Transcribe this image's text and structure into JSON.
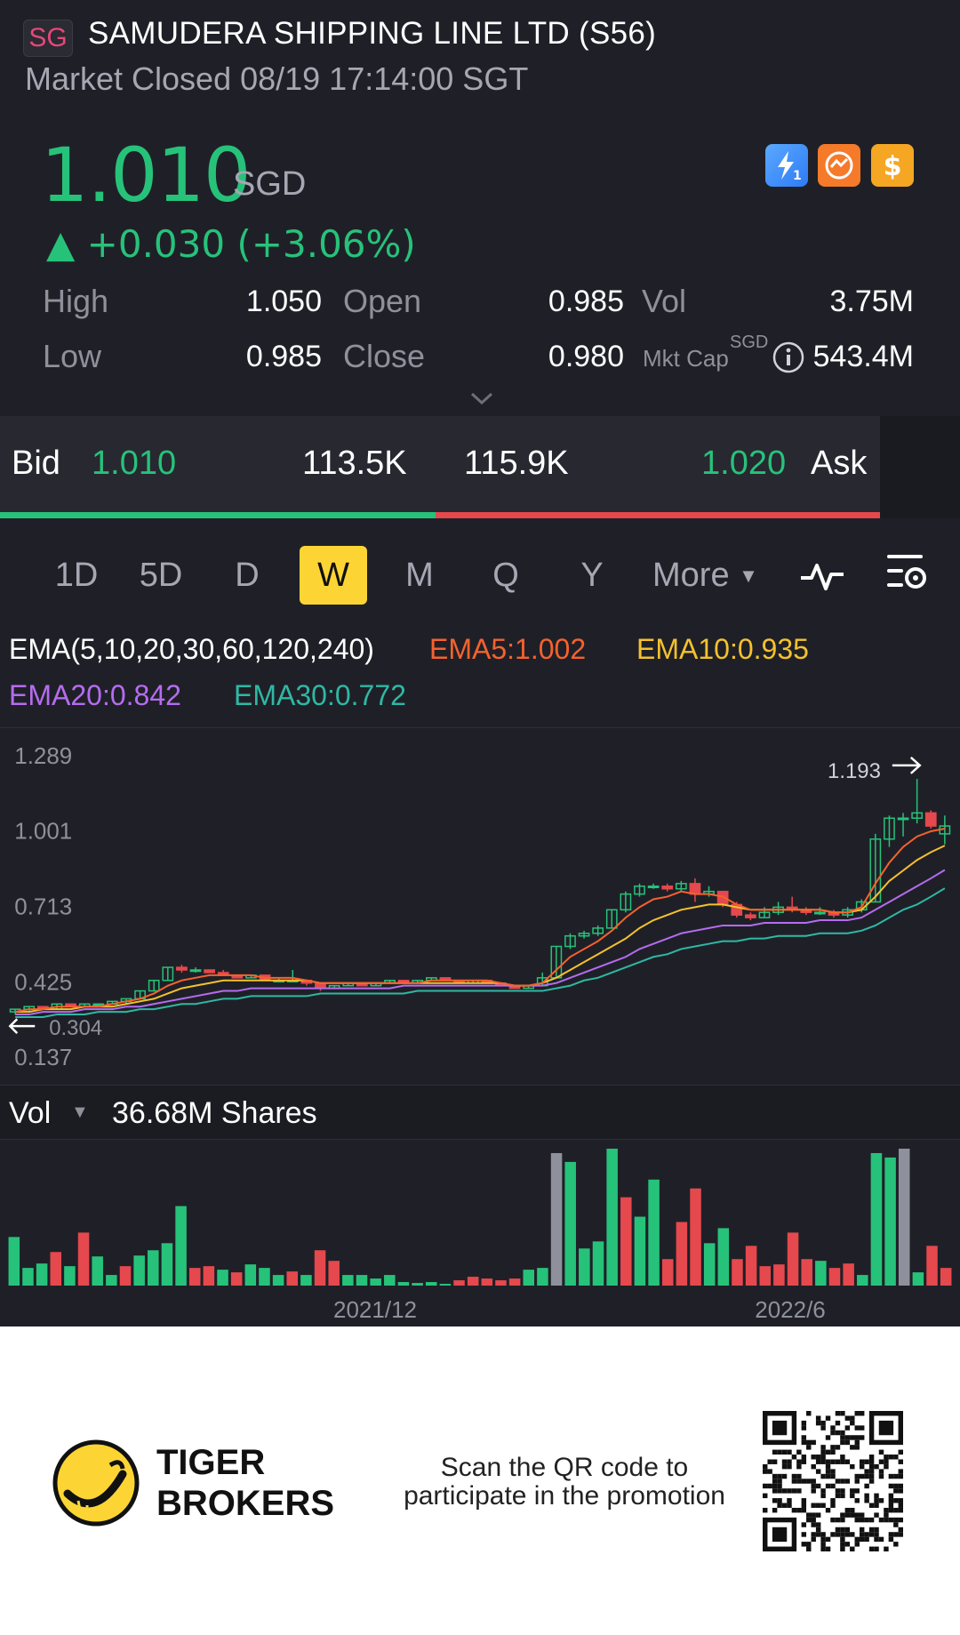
{
  "header": {
    "exchange_badge": "SG",
    "title": "SAMUDERA SHIPPING LINE LTD (S56)",
    "status": "Market Closed 08/19 17:14:00 SGT"
  },
  "quote": {
    "price": "1.010",
    "currency": "SGD",
    "change": "▲ +0.030 (+3.06%)",
    "icons": [
      "flash-1-icon",
      "orange-swap-icon",
      "dollar-icon"
    ]
  },
  "stats": {
    "high_label": "High",
    "high": "1.050",
    "low_label": "Low",
    "low": "0.985",
    "open_label": "Open",
    "open": "0.985",
    "close_label": "Close",
    "close": "0.980",
    "vol_label": "Vol",
    "vol": "3.75M",
    "mktcap_label": "Mkt Cap",
    "mktcap_unit": "SGD",
    "mktcap": "543.4M"
  },
  "bidask": {
    "bid_label": "Bid",
    "bid_price": "1.010",
    "bid_size": "113.5K",
    "ask_size": "115.9K",
    "ask_price": "1.020",
    "ask_label": "Ask",
    "bid_color": "#27c27a",
    "ask_color": "#e5484d"
  },
  "periods": {
    "items": [
      "1D",
      "5D",
      "D",
      "W",
      "M",
      "Q",
      "Y"
    ],
    "active": "W",
    "more_label": "More"
  },
  "ema": {
    "label": "EMA(5,10,20,30,60,120,240)",
    "ema5": "EMA5:1.002",
    "ema10": "EMA10:0.935",
    "ema20": "EMA20:0.842",
    "ema30": "EMA30:0.772",
    "colors": {
      "ema5": "#f5622d",
      "ema10": "#f5c12d",
      "ema20": "#b56cf0",
      "ema30": "#2fb8a5"
    }
  },
  "chart_data": {
    "type": "candlestick",
    "y_ticks": [
      "1.289",
      "1.001",
      "0.713",
      "0.425",
      "0.137"
    ],
    "ylim": [
      0.137,
      1.289
    ],
    "max_label": "1.193",
    "min_label": "0.304",
    "x_labels": [
      "2021/12",
      "2022/6"
    ],
    "candles": [
      [
        0.3,
        0.31,
        0.29,
        0.31
      ],
      [
        0.31,
        0.32,
        0.3,
        0.32
      ],
      [
        0.32,
        0.32,
        0.31,
        0.31
      ],
      [
        0.31,
        0.33,
        0.31,
        0.33
      ],
      [
        0.33,
        0.33,
        0.32,
        0.32
      ],
      [
        0.32,
        0.33,
        0.32,
        0.33
      ],
      [
        0.33,
        0.33,
        0.32,
        0.33
      ],
      [
        0.33,
        0.34,
        0.33,
        0.34
      ],
      [
        0.34,
        0.35,
        0.33,
        0.35
      ],
      [
        0.35,
        0.38,
        0.35,
        0.38
      ],
      [
        0.38,
        0.42,
        0.38,
        0.42
      ],
      [
        0.42,
        0.47,
        0.42,
        0.47
      ],
      [
        0.47,
        0.48,
        0.45,
        0.46
      ],
      [
        0.46,
        0.47,
        0.45,
        0.46
      ],
      [
        0.46,
        0.46,
        0.45,
        0.45
      ],
      [
        0.45,
        0.46,
        0.44,
        0.44
      ],
      [
        0.44,
        0.44,
        0.43,
        0.43
      ],
      [
        0.43,
        0.44,
        0.43,
        0.44
      ],
      [
        0.44,
        0.44,
        0.42,
        0.42
      ],
      [
        0.42,
        0.43,
        0.42,
        0.42
      ],
      [
        0.42,
        0.46,
        0.42,
        0.42
      ],
      [
        0.42,
        0.42,
        0.4,
        0.41
      ],
      [
        0.41,
        0.41,
        0.38,
        0.39
      ],
      [
        0.39,
        0.4,
        0.39,
        0.4
      ],
      [
        0.4,
        0.41,
        0.4,
        0.41
      ],
      [
        0.41,
        0.41,
        0.4,
        0.4
      ],
      [
        0.4,
        0.41,
        0.4,
        0.41
      ],
      [
        0.41,
        0.42,
        0.41,
        0.42
      ],
      [
        0.42,
        0.42,
        0.41,
        0.41
      ],
      [
        0.41,
        0.42,
        0.41,
        0.42
      ],
      [
        0.42,
        0.43,
        0.42,
        0.43
      ],
      [
        0.43,
        0.43,
        0.42,
        0.42
      ],
      [
        0.42,
        0.42,
        0.41,
        0.41
      ],
      [
        0.41,
        0.42,
        0.41,
        0.42
      ],
      [
        0.42,
        0.42,
        0.41,
        0.41
      ],
      [
        0.41,
        0.41,
        0.4,
        0.4
      ],
      [
        0.4,
        0.4,
        0.39,
        0.39
      ],
      [
        0.39,
        0.4,
        0.39,
        0.4
      ],
      [
        0.4,
        0.45,
        0.4,
        0.43
      ],
      [
        0.43,
        0.55,
        0.43,
        0.55
      ],
      [
        0.55,
        0.6,
        0.54,
        0.59
      ],
      [
        0.59,
        0.61,
        0.58,
        0.6
      ],
      [
        0.6,
        0.63,
        0.59,
        0.62
      ],
      [
        0.62,
        0.69,
        0.62,
        0.69
      ],
      [
        0.69,
        0.76,
        0.68,
        0.75
      ],
      [
        0.75,
        0.79,
        0.74,
        0.78
      ],
      [
        0.78,
        0.79,
        0.77,
        0.78
      ],
      [
        0.78,
        0.79,
        0.76,
        0.77
      ],
      [
        0.77,
        0.8,
        0.76,
        0.79
      ],
      [
        0.79,
        0.81,
        0.72,
        0.75
      ],
      [
        0.75,
        0.78,
        0.74,
        0.76
      ],
      [
        0.76,
        0.76,
        0.7,
        0.71
      ],
      [
        0.71,
        0.72,
        0.66,
        0.67
      ],
      [
        0.67,
        0.68,
        0.65,
        0.66
      ],
      [
        0.66,
        0.7,
        0.66,
        0.68
      ],
      [
        0.68,
        0.72,
        0.67,
        0.7
      ],
      [
        0.7,
        0.74,
        0.68,
        0.69
      ],
      [
        0.69,
        0.7,
        0.67,
        0.68
      ],
      [
        0.68,
        0.7,
        0.67,
        0.68
      ],
      [
        0.68,
        0.69,
        0.66,
        0.67
      ],
      [
        0.67,
        0.7,
        0.66,
        0.69
      ],
      [
        0.69,
        0.73,
        0.68,
        0.72
      ],
      [
        0.72,
        0.98,
        0.72,
        0.96
      ],
      [
        0.96,
        1.05,
        0.93,
        1.04
      ],
      [
        1.04,
        1.06,
        0.97,
        1.04
      ],
      [
        1.04,
        1.19,
        1.02,
        1.06
      ],
      [
        1.06,
        1.07,
        1.0,
        1.01
      ],
      [
        0.98,
        1.05,
        0.94,
        1.01
      ]
    ],
    "ema5": [
      0.3,
      0.31,
      0.31,
      0.32,
      0.32,
      0.32,
      0.32,
      0.33,
      0.34,
      0.35,
      0.37,
      0.4,
      0.42,
      0.43,
      0.44,
      0.44,
      0.44,
      0.44,
      0.43,
      0.43,
      0.43,
      0.42,
      0.41,
      0.41,
      0.41,
      0.41,
      0.41,
      0.41,
      0.41,
      0.41,
      0.42,
      0.42,
      0.42,
      0.42,
      0.42,
      0.41,
      0.4,
      0.4,
      0.41,
      0.46,
      0.51,
      0.54,
      0.57,
      0.61,
      0.66,
      0.7,
      0.73,
      0.74,
      0.76,
      0.75,
      0.75,
      0.74,
      0.71,
      0.69,
      0.69,
      0.69,
      0.69,
      0.69,
      0.69,
      0.68,
      0.68,
      0.7,
      0.79,
      0.87,
      0.93,
      0.97,
      0.99,
      1.0
    ],
    "ema10": [
      0.3,
      0.3,
      0.31,
      0.31,
      0.31,
      0.32,
      0.32,
      0.32,
      0.33,
      0.34,
      0.35,
      0.37,
      0.39,
      0.4,
      0.41,
      0.42,
      0.42,
      0.42,
      0.42,
      0.42,
      0.42,
      0.42,
      0.41,
      0.41,
      0.41,
      0.41,
      0.41,
      0.41,
      0.41,
      0.41,
      0.41,
      0.41,
      0.41,
      0.41,
      0.41,
      0.41,
      0.4,
      0.4,
      0.41,
      0.43,
      0.46,
      0.49,
      0.52,
      0.55,
      0.58,
      0.62,
      0.65,
      0.67,
      0.69,
      0.7,
      0.71,
      0.71,
      0.7,
      0.69,
      0.69,
      0.69,
      0.69,
      0.69,
      0.69,
      0.68,
      0.68,
      0.69,
      0.74,
      0.8,
      0.84,
      0.88,
      0.91,
      0.935
    ],
    "ema20": [
      0.29,
      0.29,
      0.3,
      0.3,
      0.3,
      0.31,
      0.31,
      0.31,
      0.32,
      0.32,
      0.33,
      0.34,
      0.35,
      0.36,
      0.37,
      0.38,
      0.38,
      0.39,
      0.39,
      0.39,
      0.39,
      0.39,
      0.39,
      0.39,
      0.39,
      0.39,
      0.39,
      0.39,
      0.4,
      0.4,
      0.4,
      0.4,
      0.4,
      0.4,
      0.4,
      0.4,
      0.4,
      0.4,
      0.4,
      0.41,
      0.43,
      0.45,
      0.47,
      0.49,
      0.51,
      0.54,
      0.56,
      0.58,
      0.6,
      0.61,
      0.62,
      0.63,
      0.63,
      0.63,
      0.64,
      0.64,
      0.64,
      0.64,
      0.65,
      0.65,
      0.65,
      0.66,
      0.69,
      0.72,
      0.75,
      0.78,
      0.81,
      0.842
    ],
    "ema30": [
      0.28,
      0.28,
      0.28,
      0.29,
      0.29,
      0.29,
      0.3,
      0.3,
      0.3,
      0.31,
      0.31,
      0.32,
      0.33,
      0.33,
      0.34,
      0.35,
      0.35,
      0.36,
      0.36,
      0.36,
      0.36,
      0.36,
      0.37,
      0.37,
      0.37,
      0.37,
      0.37,
      0.37,
      0.37,
      0.38,
      0.38,
      0.38,
      0.38,
      0.38,
      0.38,
      0.38,
      0.38,
      0.38,
      0.38,
      0.39,
      0.4,
      0.42,
      0.43,
      0.45,
      0.47,
      0.49,
      0.51,
      0.52,
      0.54,
      0.55,
      0.56,
      0.57,
      0.57,
      0.58,
      0.58,
      0.59,
      0.59,
      0.59,
      0.6,
      0.6,
      0.6,
      0.61,
      0.63,
      0.66,
      0.69,
      0.71,
      0.74,
      0.772
    ],
    "volumes": [
      55,
      20,
      25,
      38,
      22,
      60,
      33,
      12,
      22,
      34,
      40,
      48,
      90,
      20,
      22,
      18,
      15,
      24,
      20,
      12,
      16,
      12,
      40,
      28,
      12,
      12,
      8,
      12,
      4,
      3,
      4,
      2,
      6,
      10,
      8,
      6,
      8,
      18,
      20,
      150,
      140,
      42,
      50,
      155,
      100,
      78,
      120,
      30,
      72,
      110,
      48,
      65,
      30,
      45,
      22,
      24,
      60,
      30,
      28,
      20,
      25,
      12,
      150,
      145,
      155,
      15,
      45,
      20
    ],
    "volume_colors": [
      "g",
      "g",
      "g",
      "r",
      "g",
      "r",
      "g",
      "g",
      "r",
      "g",
      "g",
      "g",
      "g",
      "r",
      "r",
      "g",
      "r",
      "g",
      "g",
      "g",
      "r",
      "g",
      "r",
      "r",
      "g",
      "g",
      "g",
      "g",
      "g",
      "g",
      "g",
      "g",
      "r",
      "r",
      "r",
      "r",
      "r",
      "g",
      "g",
      "gray",
      "g",
      "g",
      "g",
      "g",
      "r",
      "g",
      "g",
      "r",
      "r",
      "r",
      "g",
      "g",
      "r",
      "r",
      "r",
      "r",
      "r",
      "r",
      "g",
      "r",
      "r",
      "g",
      "g",
      "g",
      "gray",
      "g",
      "r",
      "r"
    ]
  },
  "volume": {
    "label": "Vol",
    "value": "36.68M Shares"
  },
  "footer": {
    "brand_line1": "TIGER",
    "brand_line2": "BROKERS",
    "promo_line1": "Scan the QR code to",
    "promo_line2": "participate in the promotion"
  }
}
